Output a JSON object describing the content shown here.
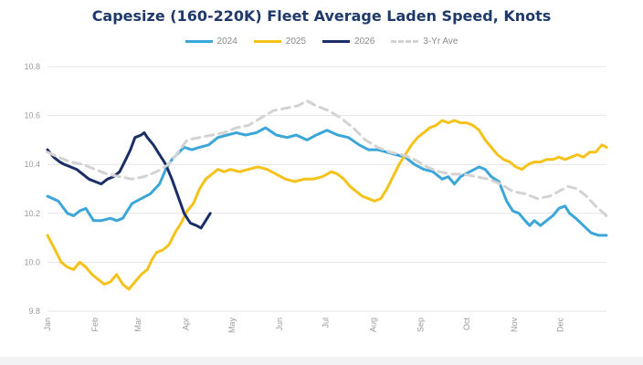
{
  "chart_data": {
    "type": "line",
    "title": "Capesize (160-220K) Fleet Average Laden Speed, Knots",
    "xlabel": "",
    "ylabel": "",
    "x_range": [
      1,
      365
    ],
    "x_ticks": [
      {
        "label": "Jan",
        "x": 1
      },
      {
        "label": "Feb",
        "x": 32
      },
      {
        "label": "Mar",
        "x": 60
      },
      {
        "label": "Apr",
        "x": 91
      },
      {
        "label": "May",
        "x": 121
      },
      {
        "label": "Jun",
        "x": 152
      },
      {
        "label": "Jul",
        "x": 182
      },
      {
        "label": "Aug",
        "x": 213
      },
      {
        "label": "Sep",
        "x": 244
      },
      {
        "label": "Oct",
        "x": 274
      },
      {
        "label": "Nov",
        "x": 305
      },
      {
        "label": "Dec",
        "x": 335
      }
    ],
    "ylim": [
      9.8,
      10.8
    ],
    "y_ticks": [
      "9.8",
      "10.0",
      "10.2",
      "10.4",
      "10.6",
      "10.8"
    ],
    "grid": true,
    "legend_position": "top-center",
    "series": [
      {
        "name": "2024",
        "color": "#3ba6d7",
        "dashed": false,
        "points": [
          [
            1,
            10.27
          ],
          [
            8,
            10.25
          ],
          [
            14,
            10.2
          ],
          [
            18,
            10.19
          ],
          [
            22,
            10.21
          ],
          [
            26,
            10.22
          ],
          [
            31,
            10.17
          ],
          [
            36,
            10.17
          ],
          [
            42,
            10.18
          ],
          [
            46,
            10.17
          ],
          [
            50,
            10.18
          ],
          [
            56,
            10.24
          ],
          [
            62,
            10.26
          ],
          [
            68,
            10.28
          ],
          [
            74,
            10.32
          ],
          [
            78,
            10.38
          ],
          [
            82,
            10.42
          ],
          [
            85,
            10.44
          ],
          [
            90,
            10.47
          ],
          [
            95,
            10.46
          ],
          [
            100,
            10.47
          ],
          [
            106,
            10.48
          ],
          [
            112,
            10.51
          ],
          [
            118,
            10.52
          ],
          [
            124,
            10.53
          ],
          [
            130,
            10.52
          ],
          [
            137,
            10.53
          ],
          [
            143,
            10.55
          ],
          [
            150,
            10.52
          ],
          [
            157,
            10.51
          ],
          [
            163,
            10.52
          ],
          [
            170,
            10.5
          ],
          [
            176,
            10.52
          ],
          [
            183,
            10.54
          ],
          [
            190,
            10.52
          ],
          [
            197,
            10.51
          ],
          [
            204,
            10.48
          ],
          [
            210,
            10.46
          ],
          [
            216,
            10.46
          ],
          [
            222,
            10.45
          ],
          [
            228,
            10.44
          ],
          [
            234,
            10.43
          ],
          [
            240,
            10.4
          ],
          [
            246,
            10.38
          ],
          [
            252,
            10.37
          ],
          [
            258,
            10.34
          ],
          [
            262,
            10.35
          ],
          [
            266,
            10.32
          ],
          [
            270,
            10.35
          ],
          [
            276,
            10.37
          ],
          [
            282,
            10.39
          ],
          [
            286,
            10.38
          ],
          [
            290,
            10.35
          ],
          [
            295,
            10.33
          ],
          [
            300,
            10.25
          ],
          [
            304,
            10.21
          ],
          [
            308,
            10.2
          ],
          [
            312,
            10.17
          ],
          [
            315,
            10.15
          ],
          [
            318,
            10.17
          ],
          [
            322,
            10.15
          ],
          [
            326,
            10.17
          ],
          [
            330,
            10.19
          ],
          [
            334,
            10.22
          ],
          [
            338,
            10.23
          ],
          [
            341,
            10.2
          ],
          [
            345,
            10.18
          ],
          [
            350,
            10.15
          ],
          [
            355,
            10.12
          ],
          [
            360,
            10.11
          ],
          [
            365,
            10.11
          ]
        ]
      },
      {
        "name": "2025",
        "color": "#f5c21a",
        "dashed": false,
        "points": [
          [
            1,
            10.11
          ],
          [
            6,
            10.05
          ],
          [
            10,
            10.0
          ],
          [
            14,
            9.98
          ],
          [
            18,
            9.97
          ],
          [
            22,
            10.0
          ],
          [
            26,
            9.98
          ],
          [
            30,
            9.95
          ],
          [
            34,
            9.93
          ],
          [
            38,
            9.91
          ],
          [
            42,
            9.92
          ],
          [
            46,
            9.95
          ],
          [
            50,
            9.91
          ],
          [
            54,
            9.89
          ],
          [
            58,
            9.92
          ],
          [
            62,
            9.95
          ],
          [
            66,
            9.97
          ],
          [
            69,
            10.01
          ],
          [
            72,
            10.04
          ],
          [
            76,
            10.05
          ],
          [
            80,
            10.07
          ],
          [
            84,
            10.12
          ],
          [
            88,
            10.16
          ],
          [
            92,
            10.21
          ],
          [
            96,
            10.24
          ],
          [
            100,
            10.3
          ],
          [
            104,
            10.34
          ],
          [
            108,
            10.36
          ],
          [
            112,
            10.38
          ],
          [
            116,
            10.37
          ],
          [
            120,
            10.38
          ],
          [
            126,
            10.37
          ],
          [
            132,
            10.38
          ],
          [
            138,
            10.39
          ],
          [
            144,
            10.38
          ],
          [
            150,
            10.36
          ],
          [
            156,
            10.34
          ],
          [
            162,
            10.33
          ],
          [
            168,
            10.34
          ],
          [
            174,
            10.34
          ],
          [
            180,
            10.35
          ],
          [
            186,
            10.37
          ],
          [
            190,
            10.36
          ],
          [
            194,
            10.34
          ],
          [
            198,
            10.31
          ],
          [
            202,
            10.29
          ],
          [
            206,
            10.27
          ],
          [
            210,
            10.26
          ],
          [
            214,
            10.25
          ],
          [
            218,
            10.26
          ],
          [
            222,
            10.3
          ],
          [
            226,
            10.35
          ],
          [
            230,
            10.4
          ],
          [
            234,
            10.44
          ],
          [
            238,
            10.48
          ],
          [
            242,
            10.51
          ],
          [
            246,
            10.53
          ],
          [
            250,
            10.55
          ],
          [
            254,
            10.56
          ],
          [
            258,
            10.58
          ],
          [
            262,
            10.57
          ],
          [
            266,
            10.58
          ],
          [
            270,
            10.57
          ],
          [
            274,
            10.57
          ],
          [
            278,
            10.56
          ],
          [
            282,
            10.54
          ],
          [
            286,
            10.5
          ],
          [
            290,
            10.47
          ],
          [
            294,
            10.44
          ],
          [
            298,
            10.42
          ],
          [
            302,
            10.41
          ],
          [
            306,
            10.39
          ],
          [
            310,
            10.38
          ],
          [
            314,
            10.4
          ],
          [
            318,
            10.41
          ],
          [
            322,
            10.41
          ],
          [
            326,
            10.42
          ],
          [
            330,
            10.42
          ],
          [
            334,
            10.43
          ],
          [
            338,
            10.42
          ],
          [
            342,
            10.43
          ],
          [
            346,
            10.44
          ],
          [
            350,
            10.43
          ],
          [
            354,
            10.45
          ],
          [
            358,
            10.45
          ],
          [
            362,
            10.48
          ],
          [
            365,
            10.47
          ]
        ]
      },
      {
        "name": "2026",
        "color": "#1b2f66",
        "dashed": false,
        "points": [
          [
            1,
            10.46
          ],
          [
            5,
            10.43
          ],
          [
            9,
            10.41
          ],
          [
            12,
            10.4
          ],
          [
            16,
            10.39
          ],
          [
            20,
            10.38
          ],
          [
            24,
            10.36
          ],
          [
            28,
            10.34
          ],
          [
            32,
            10.33
          ],
          [
            36,
            10.32
          ],
          [
            40,
            10.34
          ],
          [
            44,
            10.35
          ],
          [
            48,
            10.37
          ],
          [
            52,
            10.42
          ],
          [
            55,
            10.46
          ],
          [
            58,
            10.51
          ],
          [
            62,
            10.52
          ],
          [
            64,
            10.53
          ],
          [
            66,
            10.51
          ],
          [
            70,
            10.48
          ],
          [
            74,
            10.44
          ],
          [
            78,
            10.4
          ],
          [
            82,
            10.34
          ],
          [
            86,
            10.27
          ],
          [
            90,
            10.2
          ],
          [
            94,
            10.16
          ],
          [
            98,
            10.15
          ],
          [
            101,
            10.14
          ],
          [
            104,
            10.17
          ],
          [
            107,
            10.2
          ]
        ]
      },
      {
        "name": "3-Yr Ave",
        "color": "#d3d3d3",
        "dashed": true,
        "points": [
          [
            1,
            10.45
          ],
          [
            8,
            10.43
          ],
          [
            16,
            10.41
          ],
          [
            24,
            10.4
          ],
          [
            32,
            10.38
          ],
          [
            40,
            10.36
          ],
          [
            48,
            10.35
          ],
          [
            56,
            10.34
          ],
          [
            64,
            10.35
          ],
          [
            72,
            10.37
          ],
          [
            80,
            10.4
          ],
          [
            86,
            10.45
          ],
          [
            92,
            10.5
          ],
          [
            100,
            10.51
          ],
          [
            108,
            10.52
          ],
          [
            116,
            10.53
          ],
          [
            124,
            10.55
          ],
          [
            132,
            10.56
          ],
          [
            140,
            10.59
          ],
          [
            148,
            10.62
          ],
          [
            156,
            10.63
          ],
          [
            164,
            10.64
          ],
          [
            170,
            10.66
          ],
          [
            176,
            10.64
          ],
          [
            184,
            10.62
          ],
          [
            192,
            10.59
          ],
          [
            200,
            10.55
          ],
          [
            208,
            10.5
          ],
          [
            216,
            10.47
          ],
          [
            224,
            10.45
          ],
          [
            232,
            10.44
          ],
          [
            240,
            10.42
          ],
          [
            248,
            10.39
          ],
          [
            256,
            10.37
          ],
          [
            264,
            10.36
          ],
          [
            272,
            10.36
          ],
          [
            280,
            10.35
          ],
          [
            288,
            10.34
          ],
          [
            296,
            10.32
          ],
          [
            304,
            10.29
          ],
          [
            312,
            10.28
          ],
          [
            320,
            10.26
          ],
          [
            328,
            10.27
          ],
          [
            334,
            10.29
          ],
          [
            340,
            10.31
          ],
          [
            346,
            10.3
          ],
          [
            352,
            10.27
          ],
          [
            358,
            10.23
          ],
          [
            365,
            10.19
          ]
        ]
      }
    ]
  }
}
